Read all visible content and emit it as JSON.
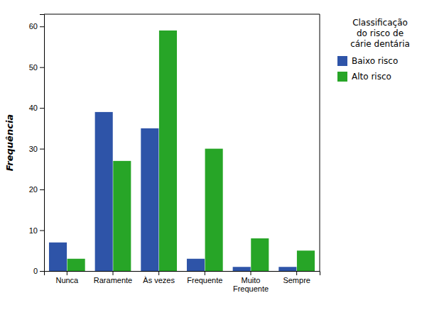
{
  "chart_data": {
    "type": "bar",
    "categories": [
      "Nunca",
      "Raramente",
      "Às vezes",
      "Frequente",
      "Muito\nFrequente",
      "Sempre"
    ],
    "series": [
      {
        "name": "Baixo risco",
        "color": "#2E54A8",
        "values": [
          7,
          39,
          35,
          3,
          1,
          1
        ]
      },
      {
        "name": "Alto risco",
        "color": "#27A527",
        "values": [
          3,
          27,
          59,
          30,
          8,
          5
        ]
      }
    ],
    "y_label": "Frequência",
    "ylim": [
      0,
      63
    ],
    "yticks": [
      0,
      10,
      20,
      30,
      40,
      50,
      60
    ],
    "legend": "right",
    "legend_title": "Classificação\ndo risco de\ncárie dentária",
    "grid": false
  }
}
